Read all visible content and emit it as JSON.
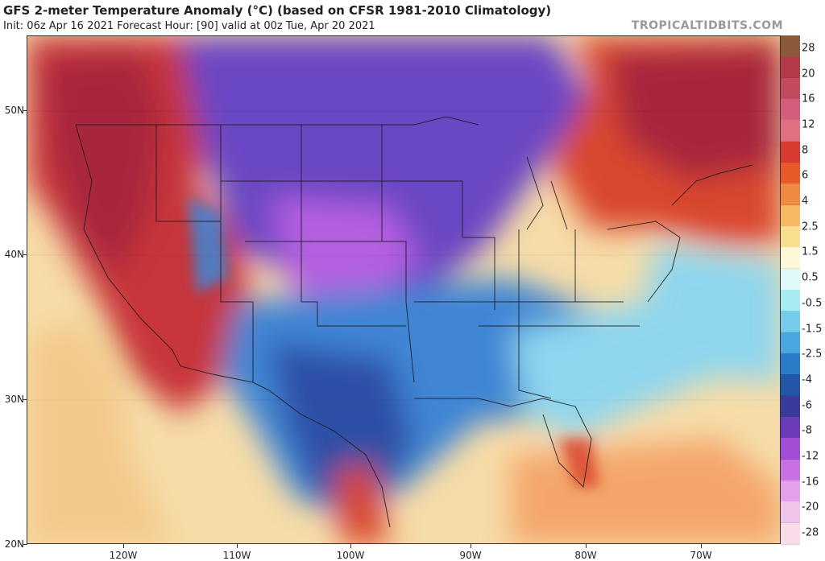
{
  "header": {
    "title": "GFS 2-meter Temperature Anomaly (°C) (based on CFSR 1981-2010 Climatology)",
    "subtitle": "Init: 06z Apr 16 2021   Forecast Hour: [90]   valid at 00z Tue, Apr 20 2021",
    "brand": "TROPICALTIDBITS.COM"
  },
  "map": {
    "lat_labels": [
      "50N",
      "40N",
      "30N",
      "20N"
    ],
    "lon_labels": [
      "120W",
      "110W",
      "100W",
      "90W",
      "80W",
      "70W"
    ]
  },
  "colorbar": {
    "labels": [
      "28",
      "20",
      "16",
      "12",
      "8",
      "6",
      "4",
      "2.5",
      "1.5",
      "0.5",
      "-0.5",
      "-1.5",
      "-2.5",
      "-4",
      "-6",
      "-8",
      "-12",
      "-16",
      "-20",
      "-28"
    ],
    "colors": [
      "#8a5a3a",
      "#b33a48",
      "#c44a5e",
      "#d45d7c",
      "#e07080",
      "#d63a30",
      "#e85a2a",
      "#f08a40",
      "#f6b860",
      "#f9de90",
      "#fff8d8",
      "#e0f8f8",
      "#a8ecf2",
      "#78cceb",
      "#4aa6df",
      "#2a7cc8",
      "#2456a8",
      "#3a3a9a",
      "#6a3cba",
      "#a24fd6",
      "#c970e2",
      "#e4a0ea",
      "#f0c4e8",
      "#f8dce8"
    ]
  },
  "colors": {
    "warm_dark": "#a8283c",
    "warm": "#d9462e",
    "warm_light": "#f4a66a",
    "neutral": "#f8ecc6",
    "cool_light": "#8ed6ee",
    "cool": "#3f86d4",
    "cool_dark": "#2e4fa6",
    "cold": "#6a46c4",
    "very_cold": "#b35ee0"
  }
}
